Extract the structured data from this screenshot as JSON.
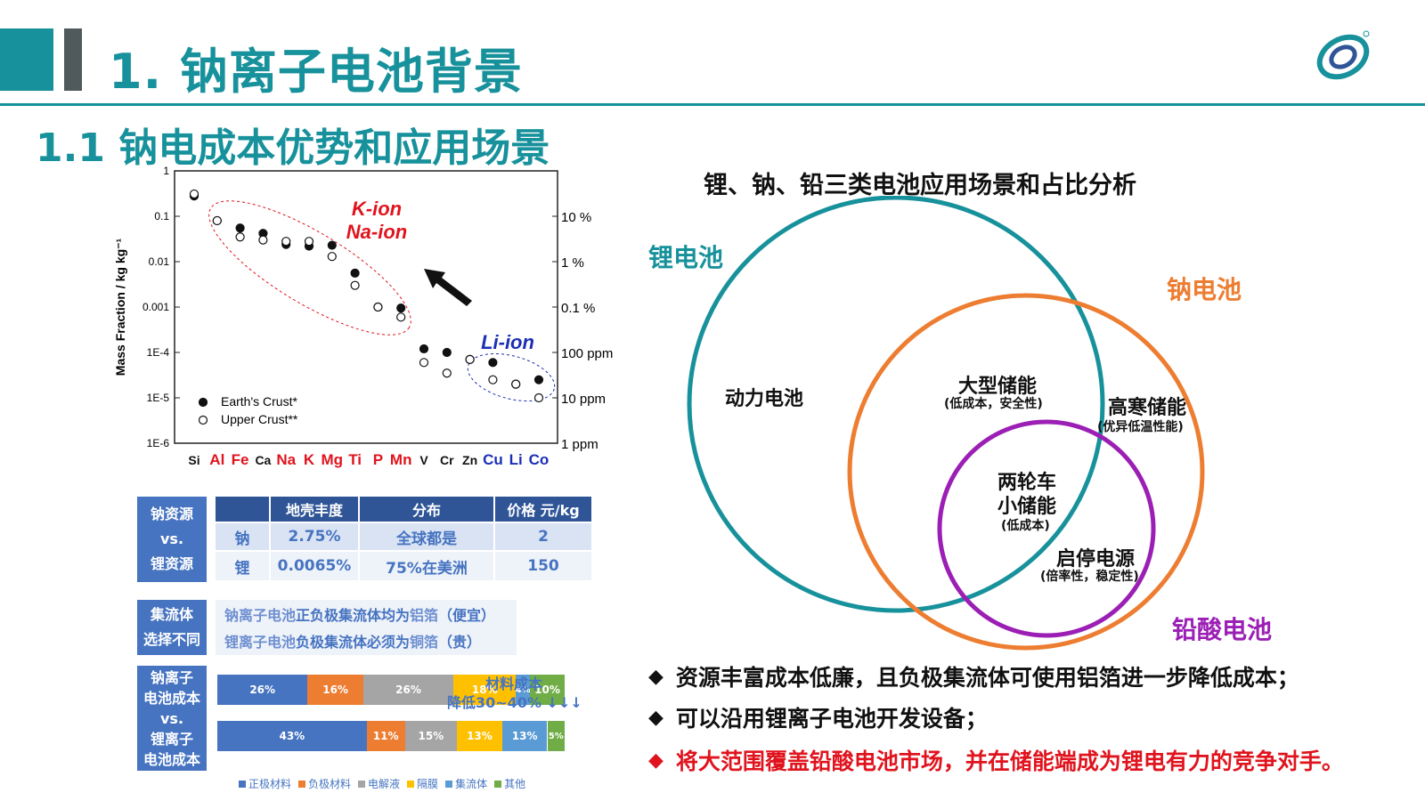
{
  "header": {
    "title": "1. 钠离子电池背景",
    "subtitle": "1.1 钠电成本优势和应用场景"
  },
  "chart_data": {
    "type": "scatter",
    "ylabel": "Mass Fraction   /  kg kg⁻¹",
    "y_scale": "log",
    "ylim": [
      1e-06,
      1
    ],
    "y_ticks": [
      "1",
      "0.1",
      "0.01",
      "0.001",
      "1E-4",
      "1E-5",
      "1E-6"
    ],
    "y2_ticks": [
      "10 %",
      "1 %",
      "0.1 %",
      "100 ppm",
      "10 ppm",
      "1 ppm"
    ],
    "categories": [
      "Si",
      "Al",
      "Fe",
      "Ca",
      "Na",
      "K",
      "Mg",
      "Ti",
      "P",
      "Mn",
      "V",
      "Cr",
      "Zn",
      "Cu",
      "Li",
      "Co"
    ],
    "highlight_red": [
      "Al",
      "Fe",
      "Na",
      "K",
      "Mg",
      "Ti",
      "P",
      "Mn"
    ],
    "highlight_blue": [
      "Cu",
      "Li",
      "Co"
    ],
    "series": [
      {
        "name": "Earth's Crust*",
        "marker": "filled",
        "values": [
          0.28,
          0.08,
          0.055,
          0.042,
          0.024,
          0.022,
          0.023,
          0.0056,
          0.001,
          0.00095,
          0.00012,
          0.0001,
          7e-05,
          6e-05,
          2e-05,
          2.5e-05
        ]
      },
      {
        "name": "Upper Crust**",
        "marker": "open",
        "values": [
          0.31,
          0.08,
          0.035,
          0.03,
          0.028,
          0.028,
          0.013,
          0.003,
          0.001,
          0.0006,
          6e-05,
          3.5e-05,
          7e-05,
          2.5e-05,
          2e-05,
          1e-05
        ]
      }
    ],
    "annotations": [
      "K-ion",
      "Na-ion",
      "Li-ion"
    ]
  },
  "resource_table": {
    "row_label": [
      "钠资源",
      "vs.",
      "锂资源"
    ],
    "headers": [
      "",
      "地壳丰度",
      "分布",
      "价格 元/kg"
    ],
    "rows": [
      [
        "钠",
        "2.75%",
        "全球都是",
        "2"
      ],
      [
        "锂",
        "0.0065%",
        "75%在美洲",
        "150"
      ]
    ]
  },
  "collector": {
    "label": [
      "集流体",
      "选择不同"
    ],
    "line1": {
      "a": "钠离子电池",
      "b": "正负极集流体均为",
      "c": "铝箔",
      "d": "（便宜）"
    },
    "line2": {
      "a": "锂离子电池",
      "b": "负极集流体必须为",
      "c": "铜箔",
      "d": "（贵）"
    }
  },
  "material_cost": {
    "label_na": [
      "钠离子",
      "电池成本"
    ],
    "label_vs": "vs.",
    "label_li": [
      "锂离子",
      "电池成本"
    ],
    "note_line1": "材料成本",
    "note_line2": "降低30~40% ↓↓↓",
    "na_bar": [
      {
        "pct": 26,
        "label": "26%"
      },
      {
        "pct": 16,
        "label": "16%"
      },
      {
        "pct": 26,
        "label": "26%"
      },
      {
        "pct": 18,
        "label": "18%"
      },
      {
        "pct": 4,
        "label": "4%"
      },
      {
        "pct": 10,
        "label": "10%"
      }
    ],
    "li_bar": [
      {
        "pct": 43,
        "label": "43%"
      },
      {
        "pct": 11,
        "label": "11%"
      },
      {
        "pct": 15,
        "label": "15%"
      },
      {
        "pct": 13,
        "label": "13%"
      },
      {
        "pct": 13,
        "label": "13%"
      },
      {
        "pct": 5,
        "label": "5%"
      }
    ],
    "legend": [
      "正极材料",
      "负极材料",
      "电解液",
      "隔膜",
      "集流体",
      "其他"
    ],
    "colors": [
      "#4674c1",
      "#ed7d31",
      "#a5a5a5",
      "#ffc000",
      "#5b9bd5",
      "#70ad47"
    ]
  },
  "venn": {
    "title": "锂、钠、铅三类电池应用场景和占比分析",
    "sets": {
      "li": "锂电池",
      "na": "钠电池",
      "pb": "铅酸电池"
    },
    "colors": {
      "li": "#17919b",
      "na": "#ed7d31",
      "pb": "#9b1fb5"
    },
    "regions": {
      "power": "动力电池",
      "large_storage": "大型储能",
      "large_storage_note": "(低成本，安全性)",
      "cold_storage": "高寒储能",
      "cold_storage_note": "(优异低温性能)",
      "two_wheel_1": "两轮车",
      "two_wheel_2": "小储能",
      "two_wheel_note": "(低成本)",
      "start_stop": "启停电源",
      "start_stop_note": "(倍率性，稳定性)"
    }
  },
  "bullets": [
    {
      "text": "资源丰富成本低廉，且负极集流体可使用铝箔进一步降低成本；",
      "color": "#111111"
    },
    {
      "text": "可以沿用锂离子电池开发设备；",
      "color": "#111111"
    },
    {
      "text": "将大范围覆盖铅酸电池市场，并在储能端成为锂电有力的竞争对手。",
      "color": "#e0141e"
    }
  ]
}
